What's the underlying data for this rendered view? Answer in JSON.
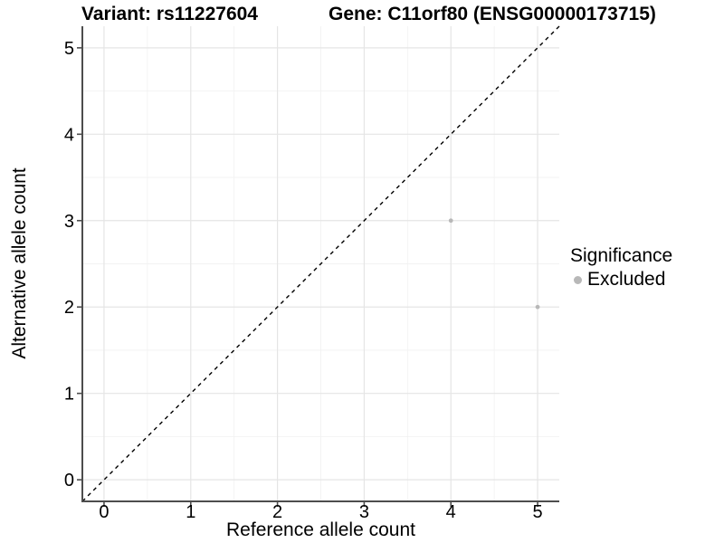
{
  "titles": {
    "variant": "Variant: rs11227604",
    "gene": "Gene: C11orf80 (ENSG00000173715)"
  },
  "chart_data": {
    "type": "scatter",
    "xlabel": "Reference allele count",
    "ylabel": "Alternative allele count",
    "xlim": [
      -0.25,
      5.25
    ],
    "ylim": [
      -0.25,
      5.25
    ],
    "xticks": [
      0,
      1,
      2,
      3,
      4,
      5
    ],
    "yticks": [
      0,
      1,
      2,
      3,
      4,
      5
    ],
    "grid": {
      "major": true,
      "minor": true,
      "minor_step": 0.5
    },
    "reference_line": {
      "slope": 1,
      "intercept": 0,
      "style": "dashed",
      "color": "#000000"
    },
    "series": [
      {
        "name": "Excluded",
        "color": "#b8b8b8",
        "points": [
          {
            "x": 4,
            "y": 3
          },
          {
            "x": 5,
            "y": 2
          }
        ]
      }
    ],
    "legend": {
      "title": "Significance",
      "position": "right",
      "items": [
        {
          "label": "Excluded",
          "color": "#b8b8b8"
        }
      ]
    }
  },
  "colors": {
    "background": "#ffffff",
    "grid_major": "#e5e5e5",
    "grid_minor": "#f2f2f2",
    "axis_line": "#4d4d4d",
    "tick_mark": "#4d4d4d",
    "text": "#000000",
    "point": "#b8b8b8"
  }
}
